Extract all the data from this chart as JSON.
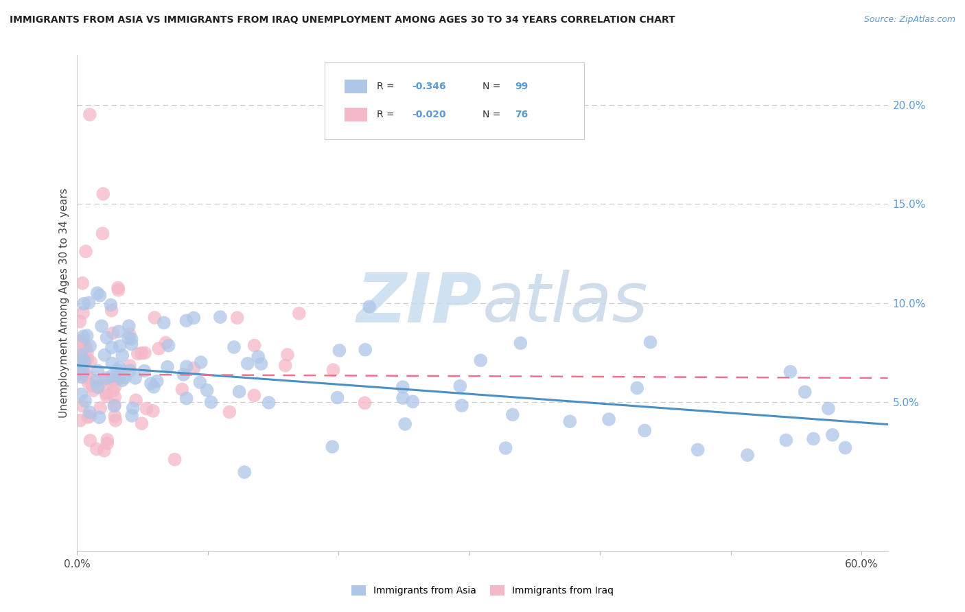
{
  "title": "IMMIGRANTS FROM ASIA VS IMMIGRANTS FROM IRAQ UNEMPLOYMENT AMONG AGES 30 TO 34 YEARS CORRELATION CHART",
  "source": "Source: ZipAtlas.com",
  "ylabel": "Unemployment Among Ages 30 to 34 years",
  "xlim": [
    0.0,
    0.62
  ],
  "ylim": [
    -0.025,
    0.225
  ],
  "yticks_right": [
    0.05,
    0.1,
    0.15,
    0.2
  ],
  "ytick_labels_right": [
    "5.0%",
    "10.0%",
    "15.0%",
    "20.0%"
  ],
  "asia_color": "#aec6e8",
  "iraq_color": "#f4b8c8",
  "asia_line_color": "#4a90c4",
  "iraq_line_color": "#f07090",
  "watermark_zip_color": "#c8ddf0",
  "watermark_atlas_color": "#c8ddf0",
  "R_asia": -0.346,
  "N_asia": 99,
  "R_iraq": -0.02,
  "N_iraq": 76,
  "asia_intercept": 0.0685,
  "asia_slope": -0.048,
  "iraq_intercept": 0.064,
  "iraq_slope": -0.003
}
